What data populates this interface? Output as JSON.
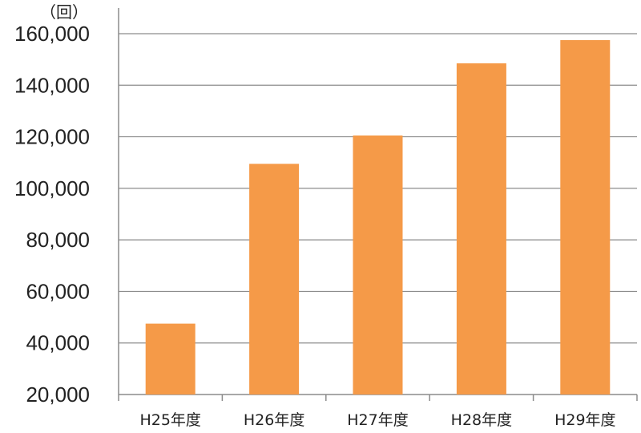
{
  "chart_data": {
    "type": "bar",
    "categories": [
      "H25年度",
      "H26年度",
      "H27年度",
      "H28年度",
      "H29年度"
    ],
    "values": [
      47500,
      109500,
      120500,
      148500,
      157500
    ],
    "unit_label": "（回）",
    "ylim": [
      20000,
      160000
    ],
    "yticks": [
      20000,
      40000,
      60000,
      80000,
      100000,
      120000,
      140000,
      160000
    ],
    "ytick_labels": [
      "20,000",
      "40,000",
      "60,000",
      "80,000",
      "100,000",
      "120,000",
      "140,000",
      "160,000"
    ],
    "bar_color": "#f59a48",
    "grid": true,
    "title": "",
    "xlabel": "",
    "ylabel": ""
  }
}
